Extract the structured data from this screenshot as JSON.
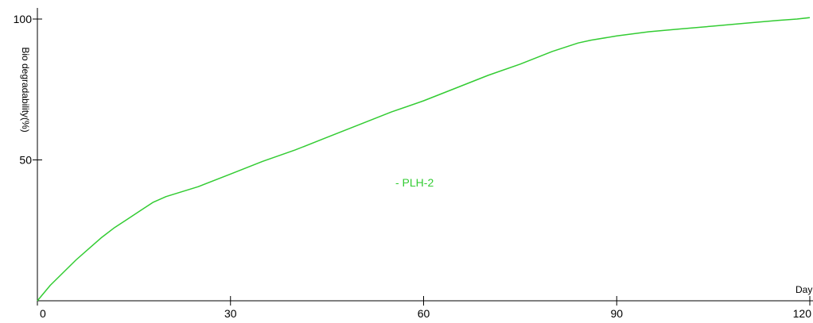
{
  "chart_data": {
    "type": "line",
    "title": "",
    "xlabel": "Day",
    "ylabel": "Bio degradability(%)",
    "xlim": [
      0,
      120
    ],
    "ylim": [
      0,
      100
    ],
    "xticks": [
      0,
      30,
      60,
      90,
      120
    ],
    "yticks": [
      50,
      100
    ],
    "xtick_labels": [
      "0",
      "30",
      "60",
      "90",
      "120"
    ],
    "ytick_labels": [
      "50",
      "100"
    ],
    "grid": false,
    "legend": {
      "position": "center",
      "label": "- PLH-2"
    },
    "series": [
      {
        "name": "PLH-2",
        "color": "#33cc33",
        "x": [
          0,
          2,
          4,
          6,
          8,
          10,
          12,
          14,
          16,
          18,
          20,
          25,
          30,
          35,
          40,
          45,
          50,
          55,
          60,
          65,
          70,
          75,
          80,
          84,
          86,
          90,
          95,
          100,
          105,
          110,
          115,
          118,
          120
        ],
        "y": [
          0,
          5.5,
          10,
          14.5,
          18.5,
          22.5,
          26,
          29,
          32,
          35,
          37,
          40.5,
          45,
          49.5,
          53.5,
          58,
          62.5,
          67,
          71,
          75.5,
          80,
          84,
          88.5,
          91.5,
          92.5,
          94,
          95.5,
          96.5,
          97.5,
          98.5,
          99.5,
          100,
          100.5
        ]
      }
    ]
  }
}
